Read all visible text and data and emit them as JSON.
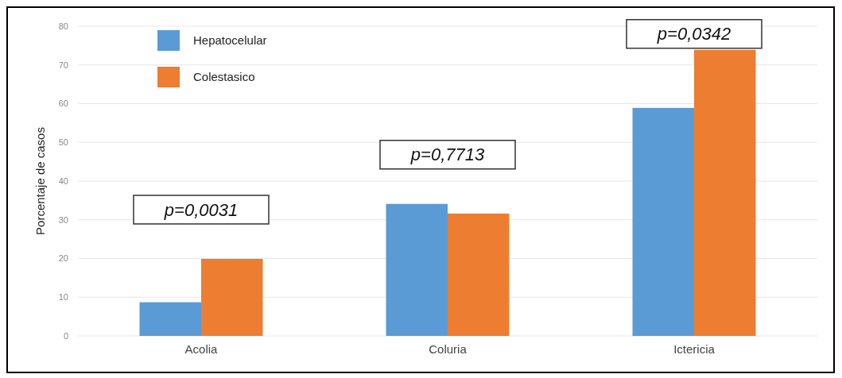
{
  "chart_data": {
    "type": "bar",
    "ylabel": "Porcentaje de casos",
    "categories": [
      "Acolia",
      "Coluria",
      "Ictericia"
    ],
    "series": [
      {
        "name": "Hepatocelular",
        "color": "#5b9bd5",
        "values": [
          8.7,
          34.1,
          58.9
        ]
      },
      {
        "name": "Colestasico",
        "color": "#ed7d31",
        "values": [
          19.9,
          31.6,
          73.9
        ]
      }
    ],
    "ylim": [
      0,
      80
    ],
    "yticks": [
      0,
      10,
      20,
      30,
      40,
      50,
      60,
      70,
      80
    ],
    "grid": "y",
    "legend": "top left",
    "annotations": [
      "p=0,0031",
      "p=0,7713",
      "p=0,0342"
    ]
  }
}
